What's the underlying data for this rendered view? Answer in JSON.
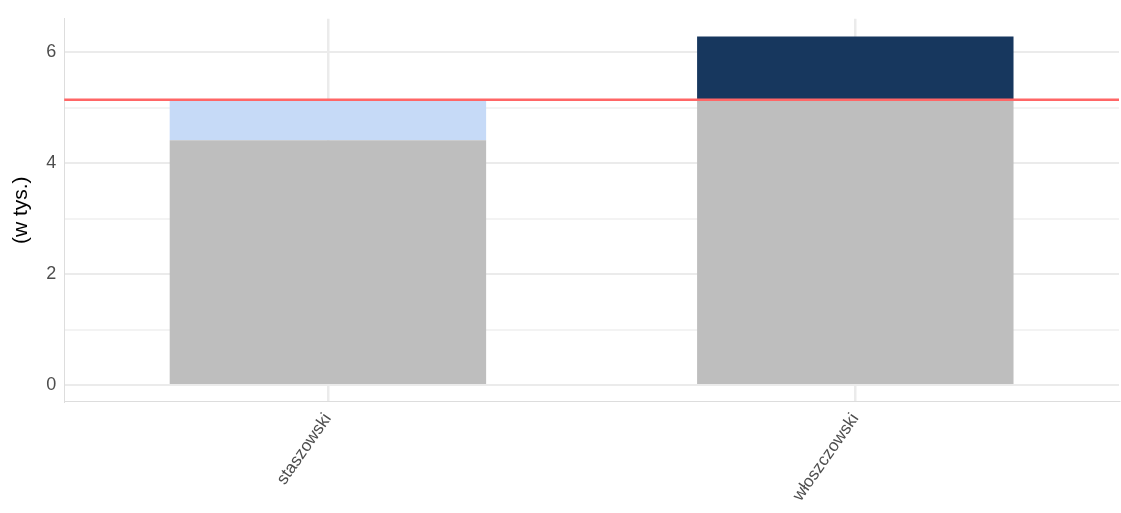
{
  "chart_data": {
    "type": "bar",
    "ylabel": "(w tys.)",
    "categories": [
      "staszowski",
      "włoszczowski"
    ],
    "stacked": true,
    "series": [
      {
        "color": "#bebebe",
        "values": [
          4.41,
          5.14
        ]
      },
      {
        "colors": [
          "#c6daf7",
          "#17375e"
        ],
        "values": [
          0.73,
          1.14
        ]
      }
    ],
    "ylim": [
      -0.3,
      6.6
    ],
    "yticks": [
      0,
      {
        "value": 1,
        "label": null
      },
      2,
      {
        "value": 3,
        "label": null
      },
      4,
      {
        "value": 5,
        "label": null
      },
      6
    ],
    "ref_lines": [
      {
        "axis": "y",
        "value": 5.14,
        "color": "#ff6666"
      }
    ],
    "grid": true,
    "legend": false
  }
}
